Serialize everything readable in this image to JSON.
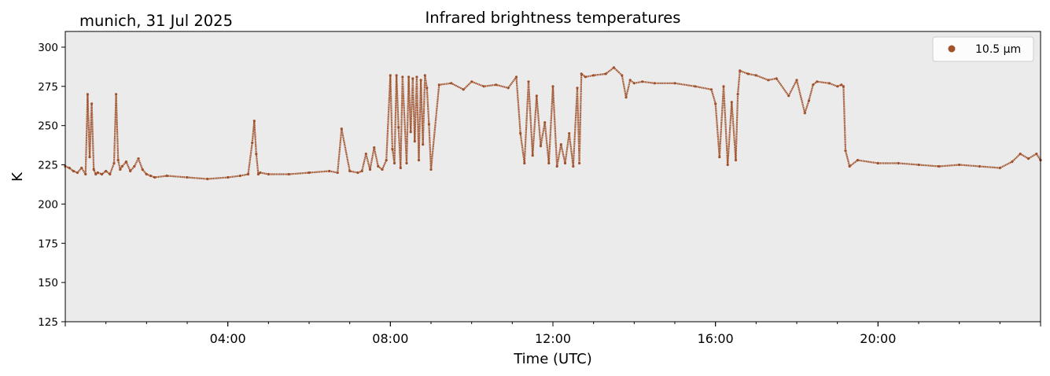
{
  "chart_data": {
    "type": "scatter",
    "title": "Infrared brightness temperatures",
    "location_date": "munich, 31 Jul 2025",
    "xlabel": "Time (UTC)",
    "ylabel": "K",
    "xlim_hours": [
      0,
      24
    ],
    "ylim": [
      125,
      310
    ],
    "yticks": [
      125,
      150,
      175,
      200,
      225,
      250,
      275,
      300
    ],
    "xticks": [
      {
        "hour": 4,
        "label": "04:00"
      },
      {
        "hour": 8,
        "label": "08:00"
      },
      {
        "hour": 12,
        "label": "12:00"
      },
      {
        "hour": 16,
        "label": "16:00"
      },
      {
        "hour": 20,
        "label": "20:00"
      }
    ],
    "grid": false,
    "legend": {
      "position": "top-right"
    },
    "colors": {
      "series": "#a0522d",
      "plot_bg": "#ebebeb"
    },
    "series": [
      {
        "name": "10.5 µm",
        "x_hours": [
          0.0,
          0.1,
          0.2,
          0.3,
          0.4,
          0.5,
          0.55,
          0.6,
          0.65,
          0.7,
          0.75,
          0.8,
          0.9,
          1.0,
          1.1,
          1.2,
          1.25,
          1.3,
          1.35,
          1.4,
          1.5,
          1.6,
          1.7,
          1.8,
          1.9,
          2.0,
          2.1,
          2.2,
          2.5,
          3.0,
          3.5,
          4.0,
          4.3,
          4.5,
          4.6,
          4.65,
          4.7,
          4.75,
          4.8,
          5.0,
          5.5,
          6.0,
          6.5,
          6.7,
          6.8,
          7.0,
          7.2,
          7.3,
          7.4,
          7.5,
          7.6,
          7.7,
          7.8,
          7.9,
          8.0,
          8.05,
          8.1,
          8.15,
          8.2,
          8.25,
          8.3,
          8.4,
          8.45,
          8.5,
          8.55,
          8.6,
          8.65,
          8.7,
          8.75,
          8.8,
          8.85,
          8.9,
          8.95,
          9.0,
          9.2,
          9.5,
          9.8,
          10.0,
          10.3,
          10.6,
          10.9,
          11.1,
          11.2,
          11.3,
          11.4,
          11.5,
          11.6,
          11.7,
          11.8,
          11.9,
          12.0,
          12.1,
          12.2,
          12.3,
          12.4,
          12.5,
          12.6,
          12.65,
          12.7,
          12.8,
          13.0,
          13.3,
          13.5,
          13.7,
          13.8,
          13.9,
          14.0,
          14.2,
          14.5,
          15.0,
          15.5,
          15.9,
          16.0,
          16.1,
          16.2,
          16.3,
          16.4,
          16.5,
          16.55,
          16.6,
          16.8,
          17.0,
          17.3,
          17.5,
          17.8,
          18.0,
          18.2,
          18.3,
          18.4,
          18.5,
          18.8,
          19.0,
          19.1,
          19.15,
          19.2,
          19.3,
          19.5,
          20.0,
          20.5,
          21.0,
          21.5,
          22.0,
          22.5,
          23.0,
          23.3,
          23.5,
          23.7,
          23.9,
          24.0
        ],
        "values": [
          224,
          223,
          221,
          220,
          223,
          219,
          270,
          230,
          264,
          222,
          219,
          220,
          219,
          221,
          219,
          226,
          270,
          228,
          222,
          224,
          227,
          221,
          224,
          229,
          222,
          219,
          218,
          217,
          218,
          217,
          216,
          217,
          218,
          219,
          239,
          253,
          232,
          219,
          220,
          219,
          219,
          220,
          221,
          220,
          248,
          221,
          220,
          221,
          232,
          222,
          236,
          224,
          222,
          228,
          282,
          235,
          226,
          282,
          249,
          223,
          281,
          226,
          281,
          246,
          280,
          240,
          281,
          228,
          279,
          238,
          282,
          274,
          251,
          222,
          276,
          277,
          273,
          278,
          275,
          276,
          274,
          281,
          245,
          226,
          278,
          231,
          269,
          237,
          252,
          226,
          275,
          224,
          238,
          226,
          245,
          224,
          274,
          226,
          283,
          281,
          282,
          283,
          287,
          282,
          268,
          279,
          277,
          278,
          277,
          277,
          275,
          273,
          264,
          230,
          275,
          225,
          265,
          228,
          270,
          285,
          283,
          282,
          279,
          280,
          269,
          279,
          258,
          266,
          276,
          278,
          277,
          275,
          276,
          275,
          234,
          224,
          228,
          226,
          226,
          225,
          224,
          225,
          224,
          223,
          227,
          232,
          229,
          232,
          228
        ]
      }
    ]
  }
}
